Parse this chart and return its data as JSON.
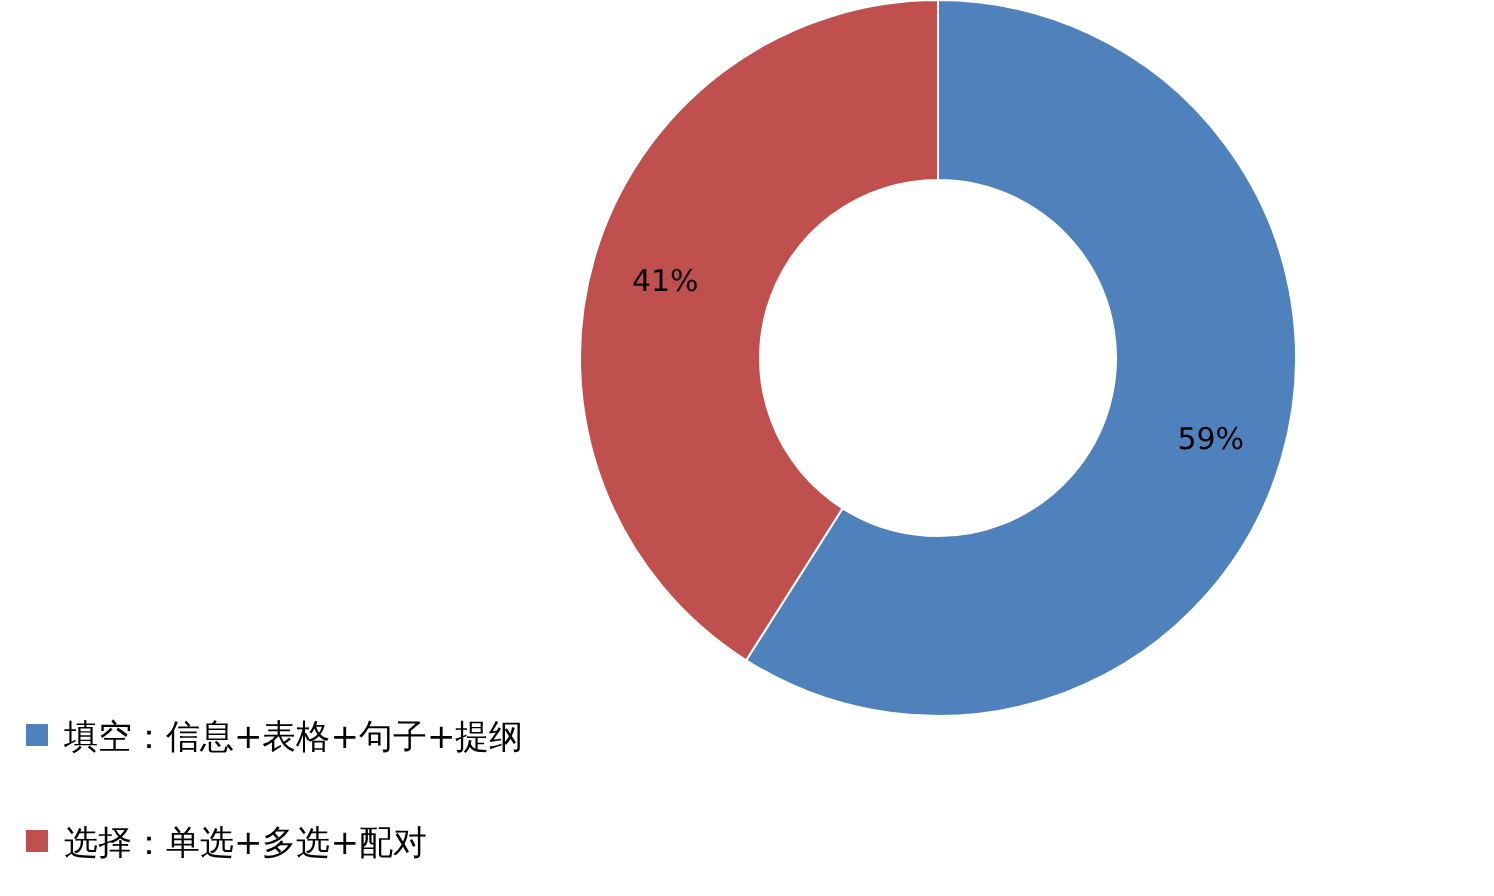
{
  "chart_data": {
    "type": "donut",
    "categories": [
      "填空：信息+表格+句子+提纲",
      "选择：单选+多选+配对"
    ],
    "values": [
      59,
      41
    ],
    "colors": [
      "#4f81bd",
      "#c0504d"
    ],
    "value_labels": [
      "59%",
      "41%"
    ],
    "legend": "bottom left"
  }
}
